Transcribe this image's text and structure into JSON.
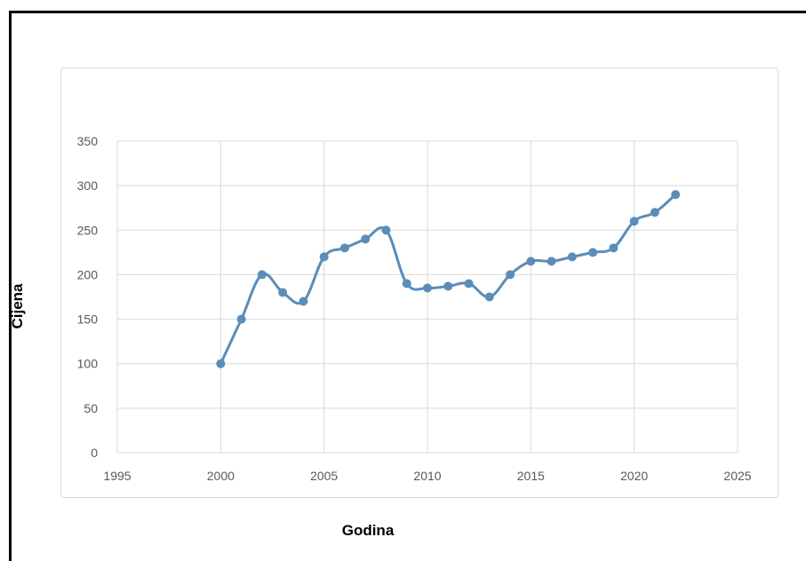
{
  "chart_data": {
    "type": "line",
    "xlabel": "Godina",
    "ylabel": "Cijena",
    "xlim": [
      1995,
      2025
    ],
    "ylim": [
      0,
      350
    ],
    "x_ticks": [
      "1995",
      "2000",
      "2005",
      "2010",
      "2015",
      "2020",
      "2025"
    ],
    "y_ticks": [
      "0",
      "50",
      "100",
      "150",
      "200",
      "250",
      "300",
      "350"
    ],
    "grid": true,
    "series": [
      {
        "color": "#5b8db8",
        "x": [
          2000,
          2001,
          2002,
          2003,
          2004,
          2005,
          2006,
          2007,
          2008,
          2009,
          2010,
          2011,
          2012,
          2013,
          2014,
          2015,
          2016,
          2017,
          2018,
          2019,
          2020,
          2021,
          2022
        ],
        "y": [
          100,
          150,
          200,
          180,
          170,
          220,
          230,
          240,
          250,
          190,
          185,
          187,
          190,
          175,
          200,
          215,
          215,
          220,
          225,
          230,
          260,
          270,
          290
        ]
      }
    ]
  }
}
